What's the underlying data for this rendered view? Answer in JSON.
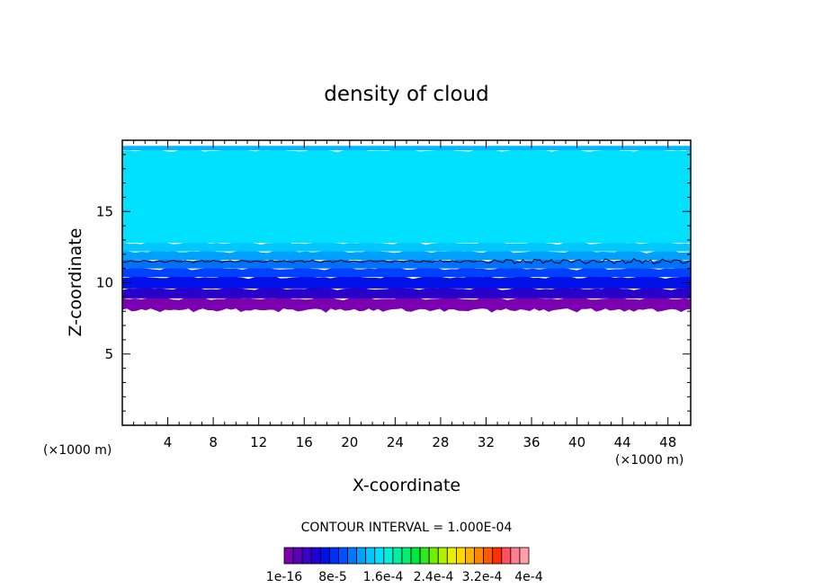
{
  "chart_data": {
    "type": "heatmap",
    "title": "density of cloud",
    "xlabel": "X-coordinate",
    "ylabel": "Z-coordinate",
    "x_unit": "(×1000 m)",
    "z_unit": "(×1000 m)",
    "xlim": [
      0,
      50
    ],
    "ylim": [
      0,
      20
    ],
    "x_ticks": [
      4,
      8,
      12,
      16,
      20,
      24,
      28,
      32,
      36,
      40,
      44,
      48
    ],
    "y_ticks": [
      5,
      10,
      15
    ],
    "cloud_layer": {
      "base_z": 8.2,
      "contour_z": 11.5,
      "top_z": 19.6,
      "band_levels": [
        {
          "z_from": 8.2,
          "z_to": 8.9,
          "color": "#7a00b0"
        },
        {
          "z_from": 8.9,
          "z_to": 9.6,
          "color": "#2a00c8"
        },
        {
          "z_from": 9.6,
          "z_to": 10.4,
          "color": "#0010e8"
        },
        {
          "z_from": 10.4,
          "z_to": 11.0,
          "color": "#0040ff"
        },
        {
          "z_from": 11.0,
          "z_to": 11.6,
          "color": "#0070ff"
        },
        {
          "z_from": 11.6,
          "z_to": 12.2,
          "color": "#00a0ff"
        },
        {
          "z_from": 12.2,
          "z_to": 12.8,
          "color": "#00c8ff"
        },
        {
          "z_from": 12.8,
          "z_to": 19.3,
          "color": "#00e0ff"
        },
        {
          "z_from": 19.3,
          "z_to": 19.6,
          "color": "#00b8ff"
        }
      ]
    },
    "contour_interval": "CONTOUR INTERVAL = 1.000E-04",
    "colorbar": {
      "colors": [
        "#7a00b0",
        "#5a00b8",
        "#3a00c8",
        "#2000d8",
        "#0010e8",
        "#0030f8",
        "#0050ff",
        "#0078ff",
        "#00a0ff",
        "#00c8ff",
        "#00e0ff",
        "#00f0d8",
        "#00f0a0",
        "#00f070",
        "#00e840",
        "#30e820",
        "#70f000",
        "#b0f000",
        "#e8f000",
        "#ffd800",
        "#ffb000",
        "#ff8800",
        "#ff5800",
        "#ff3000",
        "#ff5060",
        "#ff8090",
        "#ffa0a8"
      ],
      "tick_labels": [
        "1e-16",
        "8e-5",
        "1.6e-4",
        "2.4e-4",
        "3.2e-4",
        "4e-4"
      ]
    }
  }
}
